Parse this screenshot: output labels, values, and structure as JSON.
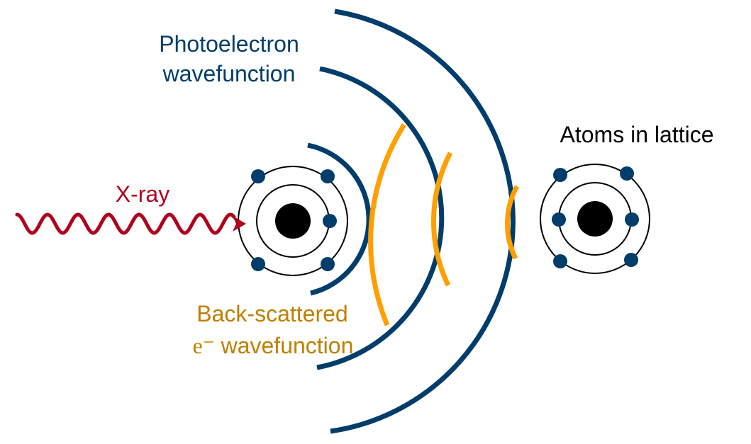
{
  "labels": {
    "photoelectron_line1": "Photoelectron",
    "photoelectron_line2": "wavefunction",
    "atoms": "Atoms in lattice",
    "xray": "X-ray",
    "backscatter_line1": "Back-scattered",
    "backscatter_electron": "e⁻",
    "backscatter_line2_rest": " wavefunction"
  },
  "colors": {
    "photoelectron": "#003d6b",
    "backscatter": "#ff9f00",
    "backscatter_label": "#c07f00",
    "xray": "#b0001e",
    "nucleus": "#000000",
    "orbit": "#000000",
    "electron": "#003d6b",
    "text": "#000000",
    "background": "#ffffff"
  },
  "icons": {
    "absorber": "atom-icon",
    "scatterer": "atom-icon",
    "xray": "wavy-arrow-icon"
  }
}
